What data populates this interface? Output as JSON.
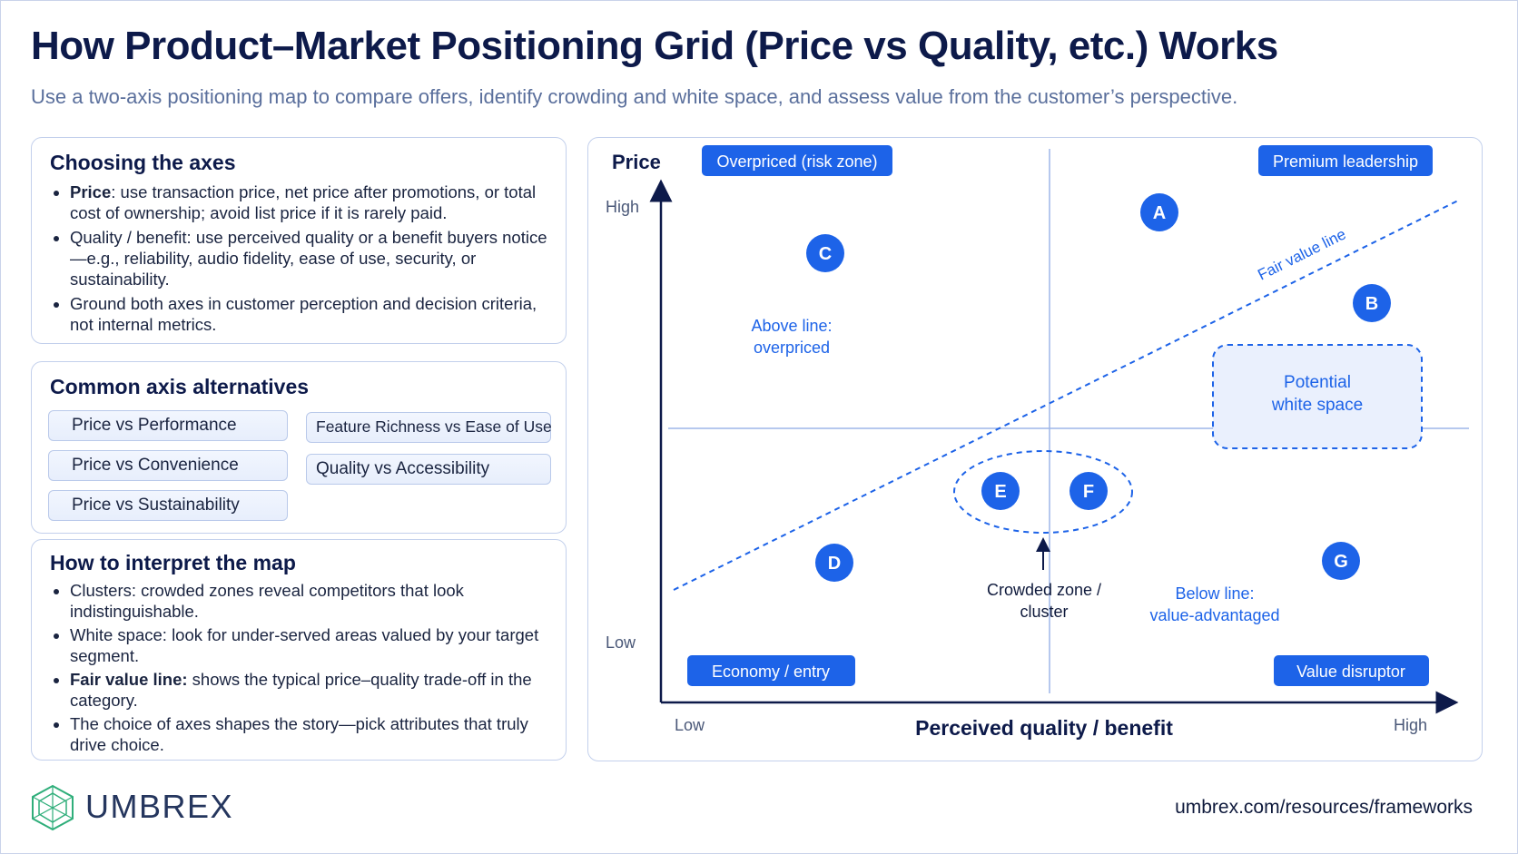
{
  "title": "How Product–Market Positioning Grid (Price vs Quality, etc.) Works",
  "subtitle": "Use a two-axis positioning map to compare offers, identify crowding and white space, and assess value from the customer’s perspective.",
  "axes_card": {
    "heading": "Choosing the axes",
    "items": [
      {
        "bold": "Price",
        "text": ": use transaction price, net price after promotions, or total cost of ownership; avoid list price if it is rarely paid."
      },
      {
        "bold": "",
        "text": "Quality / benefit: use perceived quality or a benefit buyers notice—e.g., reliability, audio fidelity, ease of use, security, or sustainability."
      },
      {
        "bold": "",
        "text": "Ground both axes in customer perception and decision criteria, not internal metrics."
      }
    ]
  },
  "alternatives_card": {
    "heading": "Common axis alternatives",
    "chips": [
      "Price vs Performance",
      "Price vs Convenience",
      "Price vs Sustainability",
      "Feature Richness vs Ease of Use",
      "Quality vs Accessibility"
    ]
  },
  "interpret_card": {
    "heading": "How to interpret the map",
    "items": [
      {
        "bold": "",
        "text": "Clusters: crowded zones reveal competitors that look indistinguishable."
      },
      {
        "bold": "",
        "text": "White space: look for under-served areas valued by your target segment."
      },
      {
        "bold": "Fair value line:",
        "text": " shows the typical price–quality trade-off in the category."
      },
      {
        "bold": "",
        "text": "The choice of axes shapes the story—pick attributes that truly drive choice."
      }
    ]
  },
  "map": {
    "y_axis_title": "Price",
    "y_high": "High",
    "y_low": "Low",
    "x_axis_title": "Perceived quality / benefit",
    "x_low": "Low",
    "x_high": "High",
    "quadrant_labels": {
      "top_left": "Overpriced (risk zone)",
      "top_right": "Premium leadership",
      "bottom_left": "Economy / entry",
      "bottom_right": "Value disruptor"
    },
    "fair_value_line_label": "Fair value line",
    "above_line": [
      "Above line:",
      "overpriced"
    ],
    "below_line": [
      "Below line:",
      "value-advantaged"
    ],
    "white_space": [
      "Potential",
      "white space"
    ],
    "crowded": [
      "Crowded zone /",
      "cluster"
    ],
    "points": [
      "A",
      "B",
      "C",
      "D",
      "E",
      "F",
      "G"
    ]
  },
  "colors": {
    "accent": "#1d63e8",
    "navy": "#0d1a4a",
    "muted": "#5a6f9c",
    "line": "#9db6e8"
  },
  "footer": {
    "brand": "UMBREX",
    "url": "umbrex.com/resources/frameworks"
  }
}
